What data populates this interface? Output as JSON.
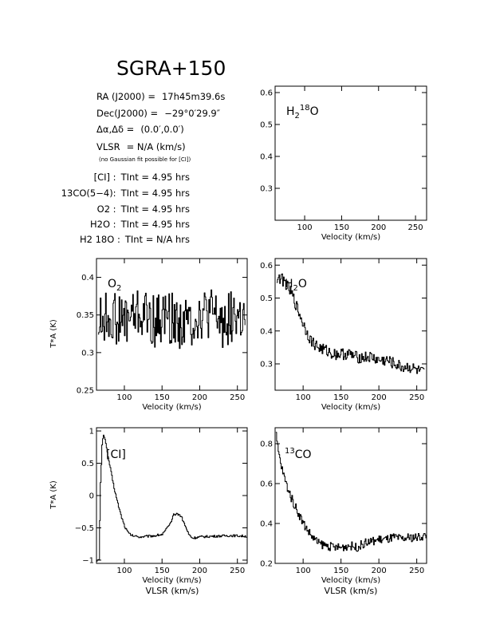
{
  "title": "SGRA+150",
  "info": {
    "ra_label": "RA (J2000) =",
    "ra_value": "17h45m39.6s",
    "dec_label": "Dec(J2000) =",
    "dec_value": "−29°0′29.9″",
    "offset_label": "Δα,Δδ =",
    "offset_value": "(0.0′,0.0′)",
    "vlsr_label": "VLSR",
    "vlsr_value": "= N/A  (km/s)",
    "vlsr_note": "(no Gaussian fit possible for [CI])",
    "integrations": [
      {
        "line": "[CI] :",
        "value": "TInt = 4.95 hrs"
      },
      {
        "line": "13CO(5−4):",
        "value": "TInt = 4.95 hrs"
      },
      {
        "line": "O2 :",
        "value": "TInt = 4.95 hrs"
      },
      {
        "line": "H2O :",
        "value": "TInt = 4.95 hrs"
      },
      {
        "line": "H2 18O :",
        "value": "TInt = N/A  hrs"
      }
    ]
  },
  "axes": {
    "xlabel": "Velocity (km/s)",
    "xlabel2": "VLSR (km/s)",
    "ylabel": "T*A (K)"
  },
  "chart_data": [
    {
      "id": "h218o",
      "type": "line",
      "label": "H2 18O",
      "xlim": [
        60,
        265
      ],
      "ylim": [
        0.2,
        0.62
      ],
      "xticks": [
        100,
        150,
        200,
        250
      ],
      "yticks": [
        0.3,
        0.4,
        0.5,
        0.6
      ],
      "xlabel": "Velocity (km/s)",
      "series": []
    },
    {
      "id": "o2",
      "type": "line",
      "label": "O2",
      "xlim": [
        63,
        263
      ],
      "ylim": [
        0.25,
        0.425
      ],
      "xticks": [
        100,
        150,
        200,
        250
      ],
      "yticks": [
        0.25,
        0.3,
        0.35,
        0.4
      ],
      "xlabel": "Velocity (km/s)",
      "ylabel": "T*A (K)",
      "series": [
        {
          "x": [
            65,
            80,
            95,
            110,
            125,
            140,
            155,
            170,
            185,
            200,
            215,
            230,
            245,
            260
          ],
          "y": [
            0.34,
            0.35,
            0.34,
            0.35,
            0.35,
            0.34,
            0.35,
            0.34,
            0.34,
            0.35,
            0.35,
            0.34,
            0.35,
            0.34
          ],
          "noise": 0.035
        }
      ]
    },
    {
      "id": "h2o",
      "type": "line",
      "label": "H2O",
      "xlim": [
        63,
        263
      ],
      "ylim": [
        0.22,
        0.62
      ],
      "xticks": [
        100,
        150,
        200,
        250
      ],
      "yticks": [
        0.3,
        0.4,
        0.5,
        0.6
      ],
      "xlabel": "Velocity (km/s)",
      "series": [
        {
          "x": [
            65,
            70,
            75,
            80,
            85,
            90,
            95,
            100,
            110,
            120,
            130,
            140,
            150,
            160,
            170,
            180,
            190,
            200,
            210,
            220,
            230,
            240,
            250,
            260
          ],
          "y": [
            0.56,
            0.56,
            0.55,
            0.53,
            0.51,
            0.48,
            0.45,
            0.42,
            0.37,
            0.35,
            0.34,
            0.33,
            0.33,
            0.33,
            0.32,
            0.32,
            0.32,
            0.31,
            0.31,
            0.3,
            0.29,
            0.29,
            0.28,
            0.27
          ],
          "noise": 0.018
        }
      ]
    },
    {
      "id": "ci",
      "type": "line",
      "label": "[CI]",
      "xlim": [
        63,
        263
      ],
      "ylim": [
        -1.05,
        1.05
      ],
      "xticks": [
        100,
        150,
        200,
        250
      ],
      "yticks": [
        -1,
        -0.5,
        0,
        0.5,
        1
      ],
      "xlabel": "Velocity (km/s)",
      "ylabel": "T*A (K)",
      "series": [
        {
          "x": [
            63,
            66,
            68,
            70,
            72,
            74,
            76,
            78,
            80,
            83,
            86,
            90,
            95,
            100,
            105,
            110,
            120,
            130,
            140,
            150,
            160,
            165,
            170,
            175,
            180,
            185,
            190,
            200,
            220,
            240,
            262
          ],
          "y": [
            -1.0,
            -1.0,
            0.2,
            0.78,
            0.95,
            0.88,
            0.72,
            0.6,
            0.48,
            0.3,
            0.12,
            -0.08,
            -0.3,
            -0.48,
            -0.58,
            -0.62,
            -0.64,
            -0.63,
            -0.62,
            -0.6,
            -0.45,
            -0.3,
            -0.28,
            -0.32,
            -0.46,
            -0.6,
            -0.66,
            -0.64,
            -0.63,
            -0.62,
            -0.63
          ],
          "noise": 0.018
        }
      ]
    },
    {
      "id": "13co",
      "type": "line",
      "label": "13CO",
      "xlim": [
        63,
        263
      ],
      "ylim": [
        0.2,
        0.88
      ],
      "xticks": [
        100,
        150,
        200,
        250
      ],
      "yticks": [
        0.2,
        0.4,
        0.6,
        0.8
      ],
      "xlabel": "Velocity (km/s)",
      "series": [
        {
          "x": [
            64,
            66,
            68,
            70,
            74,
            78,
            82,
            86,
            90,
            95,
            100,
            105,
            110,
            115,
            120,
            130,
            140,
            150,
            160,
            170,
            180,
            190,
            200,
            210,
            220,
            230,
            240,
            250,
            262
          ],
          "y": [
            0.84,
            0.78,
            0.74,
            0.7,
            0.64,
            0.59,
            0.55,
            0.51,
            0.48,
            0.44,
            0.4,
            0.37,
            0.34,
            0.32,
            0.3,
            0.29,
            0.28,
            0.28,
            0.29,
            0.28,
            0.3,
            0.31,
            0.32,
            0.32,
            0.33,
            0.32,
            0.33,
            0.33,
            0.34
          ],
          "noise": 0.022
        }
      ]
    }
  ]
}
